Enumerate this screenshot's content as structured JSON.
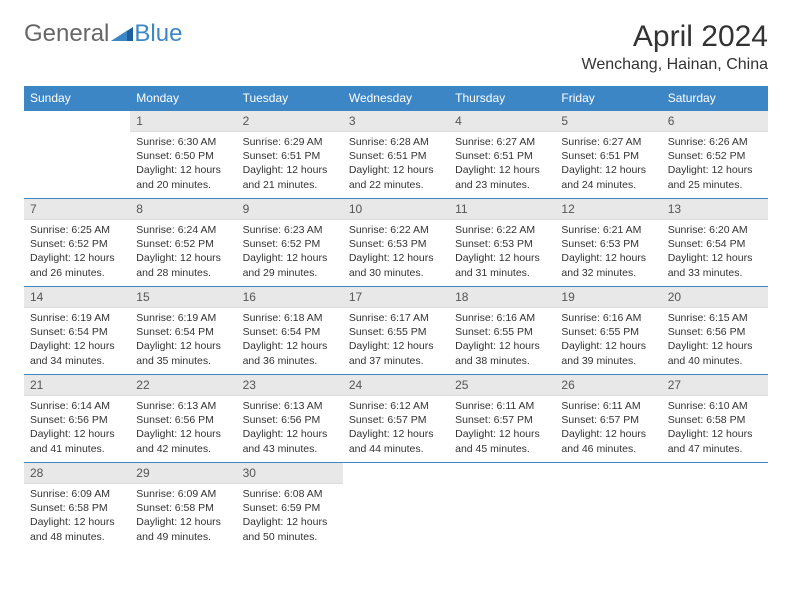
{
  "logo": {
    "text1": "General",
    "text2": "Blue",
    "color1": "#666666",
    "color2": "#3d86c6"
  },
  "title": "April 2024",
  "location": "Wenchang, Hainan, China",
  "header_bg": "#3d86c6",
  "daynum_bg": "#e8e8e8",
  "weekdays": [
    "Sunday",
    "Monday",
    "Tuesday",
    "Wednesday",
    "Thursday",
    "Friday",
    "Saturday"
  ],
  "weeks": [
    [
      null,
      {
        "n": "1",
        "sr": "6:30 AM",
        "ss": "6:50 PM",
        "dl": "12 hours and 20 minutes."
      },
      {
        "n": "2",
        "sr": "6:29 AM",
        "ss": "6:51 PM",
        "dl": "12 hours and 21 minutes."
      },
      {
        "n": "3",
        "sr": "6:28 AM",
        "ss": "6:51 PM",
        "dl": "12 hours and 22 minutes."
      },
      {
        "n": "4",
        "sr": "6:27 AM",
        "ss": "6:51 PM",
        "dl": "12 hours and 23 minutes."
      },
      {
        "n": "5",
        "sr": "6:27 AM",
        "ss": "6:51 PM",
        "dl": "12 hours and 24 minutes."
      },
      {
        "n": "6",
        "sr": "6:26 AM",
        "ss": "6:52 PM",
        "dl": "12 hours and 25 minutes."
      }
    ],
    [
      {
        "n": "7",
        "sr": "6:25 AM",
        "ss": "6:52 PM",
        "dl": "12 hours and 26 minutes."
      },
      {
        "n": "8",
        "sr": "6:24 AM",
        "ss": "6:52 PM",
        "dl": "12 hours and 28 minutes."
      },
      {
        "n": "9",
        "sr": "6:23 AM",
        "ss": "6:52 PM",
        "dl": "12 hours and 29 minutes."
      },
      {
        "n": "10",
        "sr": "6:22 AM",
        "ss": "6:53 PM",
        "dl": "12 hours and 30 minutes."
      },
      {
        "n": "11",
        "sr": "6:22 AM",
        "ss": "6:53 PM",
        "dl": "12 hours and 31 minutes."
      },
      {
        "n": "12",
        "sr": "6:21 AM",
        "ss": "6:53 PM",
        "dl": "12 hours and 32 minutes."
      },
      {
        "n": "13",
        "sr": "6:20 AM",
        "ss": "6:54 PM",
        "dl": "12 hours and 33 minutes."
      }
    ],
    [
      {
        "n": "14",
        "sr": "6:19 AM",
        "ss": "6:54 PM",
        "dl": "12 hours and 34 minutes."
      },
      {
        "n": "15",
        "sr": "6:19 AM",
        "ss": "6:54 PM",
        "dl": "12 hours and 35 minutes."
      },
      {
        "n": "16",
        "sr": "6:18 AM",
        "ss": "6:54 PM",
        "dl": "12 hours and 36 minutes."
      },
      {
        "n": "17",
        "sr": "6:17 AM",
        "ss": "6:55 PM",
        "dl": "12 hours and 37 minutes."
      },
      {
        "n": "18",
        "sr": "6:16 AM",
        "ss": "6:55 PM",
        "dl": "12 hours and 38 minutes."
      },
      {
        "n": "19",
        "sr": "6:16 AM",
        "ss": "6:55 PM",
        "dl": "12 hours and 39 minutes."
      },
      {
        "n": "20",
        "sr": "6:15 AM",
        "ss": "6:56 PM",
        "dl": "12 hours and 40 minutes."
      }
    ],
    [
      {
        "n": "21",
        "sr": "6:14 AM",
        "ss": "6:56 PM",
        "dl": "12 hours and 41 minutes."
      },
      {
        "n": "22",
        "sr": "6:13 AM",
        "ss": "6:56 PM",
        "dl": "12 hours and 42 minutes."
      },
      {
        "n": "23",
        "sr": "6:13 AM",
        "ss": "6:56 PM",
        "dl": "12 hours and 43 minutes."
      },
      {
        "n": "24",
        "sr": "6:12 AM",
        "ss": "6:57 PM",
        "dl": "12 hours and 44 minutes."
      },
      {
        "n": "25",
        "sr": "6:11 AM",
        "ss": "6:57 PM",
        "dl": "12 hours and 45 minutes."
      },
      {
        "n": "26",
        "sr": "6:11 AM",
        "ss": "6:57 PM",
        "dl": "12 hours and 46 minutes."
      },
      {
        "n": "27",
        "sr": "6:10 AM",
        "ss": "6:58 PM",
        "dl": "12 hours and 47 minutes."
      }
    ],
    [
      {
        "n": "28",
        "sr": "6:09 AM",
        "ss": "6:58 PM",
        "dl": "12 hours and 48 minutes."
      },
      {
        "n": "29",
        "sr": "6:09 AM",
        "ss": "6:58 PM",
        "dl": "12 hours and 49 minutes."
      },
      {
        "n": "30",
        "sr": "6:08 AM",
        "ss": "6:59 PM",
        "dl": "12 hours and 50 minutes."
      },
      null,
      null,
      null,
      null
    ]
  ],
  "labels": {
    "sunrise": "Sunrise:",
    "sunset": "Sunset:",
    "daylight": "Daylight:"
  }
}
